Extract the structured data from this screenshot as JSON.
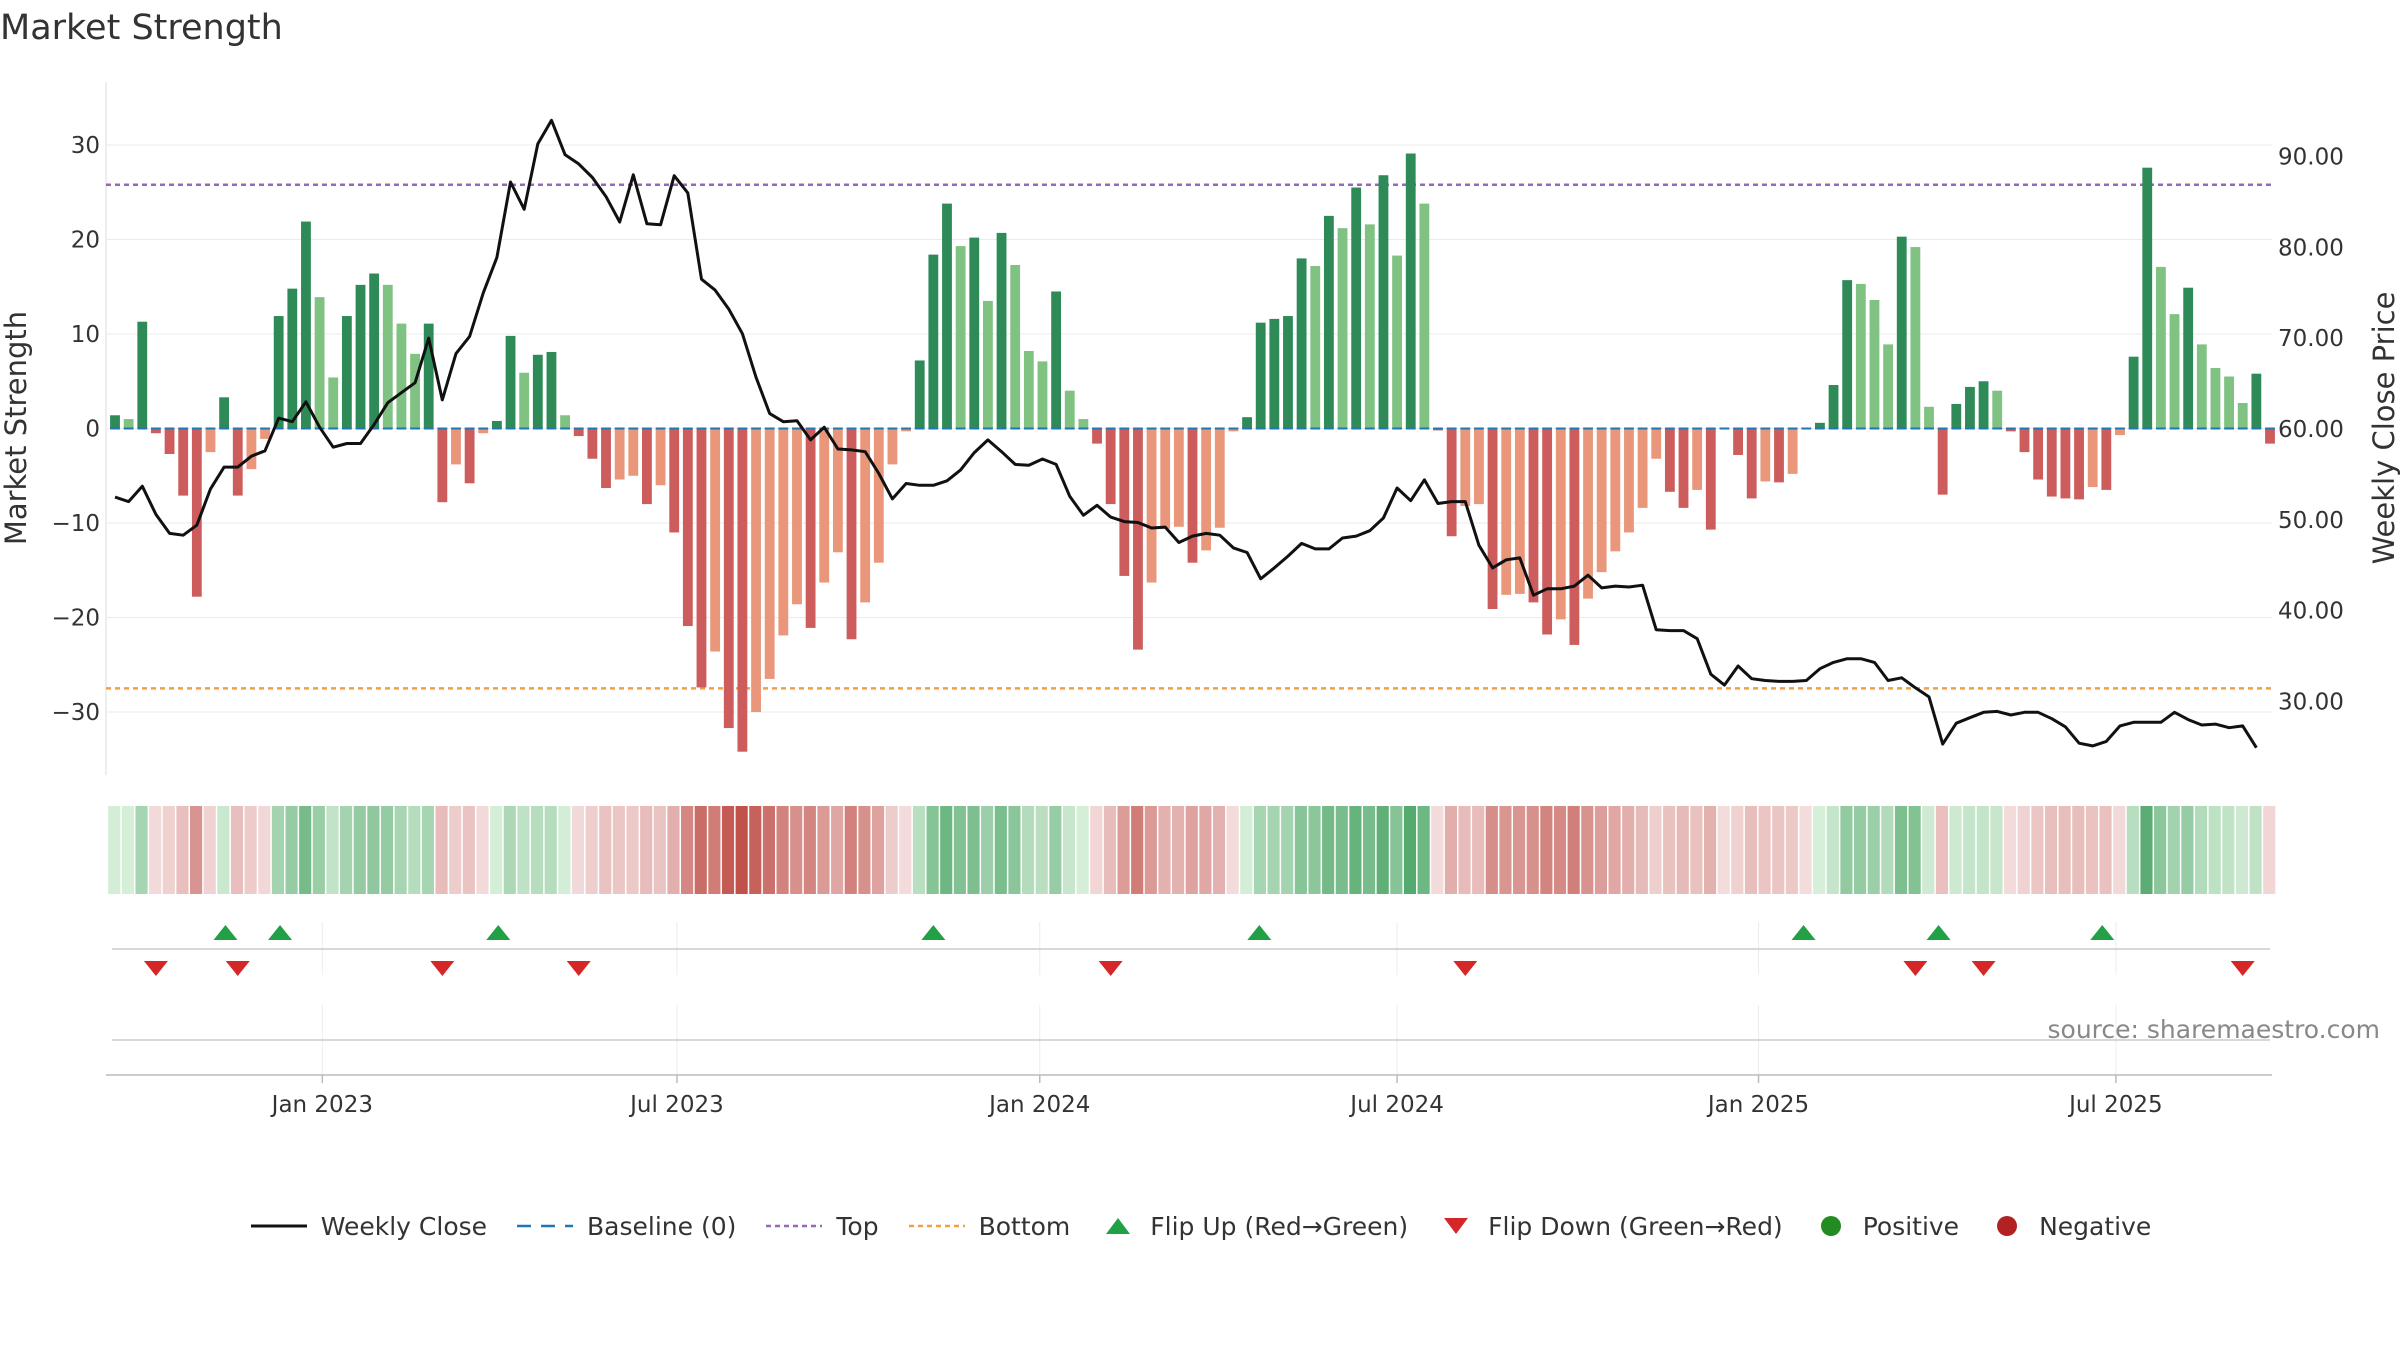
{
  "title": "Market Strength",
  "source": "source: sharemaestro.com",
  "colors": {
    "weekly_close": "#111111",
    "baseline": "#1f77b4",
    "top": "#9467bd",
    "bottom": "#f0a040",
    "pos_dark": "#2e8b57",
    "pos_light": "#7fc282",
    "neg_dark": "#cd5c5c",
    "neg_light": "#e9967a",
    "flip_up": "#22a045",
    "flip_down": "#d62728",
    "positive_dot": "#228b22",
    "negative_dot": "#b22222"
  },
  "legend": [
    {
      "label": "Weekly Close",
      "icon": "line-icon",
      "key": "weekly_close"
    },
    {
      "label": "Baseline (0)",
      "icon": "dashed-line-icon",
      "key": "baseline"
    },
    {
      "label": "Top",
      "icon": "dotted-line-icon",
      "key": "top"
    },
    {
      "label": "Bottom",
      "icon": "dotted-line-icon",
      "key": "bottom"
    },
    {
      "label": "Flip Up (Red→Green)",
      "icon": "triangle-up-icon",
      "key": "flip_up"
    },
    {
      "label": "Flip Down (Green→Red)",
      "icon": "triangle-down-icon",
      "key": "flip_down"
    },
    {
      "label": "Positive",
      "icon": "circle-icon",
      "key": "positive_dot"
    },
    {
      "label": "Negative",
      "icon": "circle-icon",
      "key": "negative_dot"
    }
  ],
  "chart_data": {
    "type": "bar",
    "ylabel": "Market Strength",
    "y2label": "Weekly Close Price",
    "ylim": [
      -37,
      37
    ],
    "y2lim": [
      23,
      98
    ],
    "yticks": [
      30,
      20,
      10,
      0,
      -10,
      -20,
      -30
    ],
    "yticklabels": [
      "30",
      "20",
      "10",
      "0",
      "−10",
      "−20",
      "−30"
    ],
    "y2ticks": [
      90,
      80,
      70,
      60,
      50,
      40,
      30
    ],
    "y2ticklabels": [
      "90.00",
      "80.00",
      "70.00",
      "60.00",
      "50.00",
      "40.00",
      "30.00"
    ],
    "top_threshold": 25.8,
    "bottom_threshold": -27.5,
    "xticks": [
      "Jan 2023",
      "Jul 2023",
      "Jan 2024",
      "Jul 2024",
      "Jan 2025",
      "Jul 2025"
    ],
    "xtick_week_index": [
      15.2,
      41.2,
      67.8,
      94.0,
      120.5,
      146.7
    ],
    "strength": [
      1.4,
      1,
      11.3,
      -0.5,
      -2.7,
      -7.1,
      -17.8,
      -2.5,
      3.3,
      -7.1,
      -4.3,
      -1.1,
      11.9,
      14.8,
      21.9,
      13.9,
      5.4,
      11.9,
      15.2,
      16.4,
      15.2,
      11.1,
      7.9,
      11.1,
      -7.8,
      -3.8,
      -5.8,
      -0.5,
      0.8,
      9.8,
      5.9,
      7.8,
      8.1,
      1.4,
      -0.8,
      -3.2,
      -6.3,
      -5.4,
      -5.0,
      -8.0,
      -6.0,
      -11.0,
      -20.9,
      -27.4,
      -23.6,
      -31.7,
      -34.2,
      -30.0,
      -26.5,
      -21.9,
      -18.6,
      -21.1,
      -16.3,
      -13.1,
      -22.3,
      -18.4,
      -14.2,
      -3.8,
      -0.3,
      7.2,
      18.4,
      23.8,
      19.3,
      20.2,
      13.5,
      20.7,
      17.3,
      8.2,
      7.1,
      14.5,
      4.0,
      1.0,
      -1.6,
      -8.0,
      -15.6,
      -23.4,
      -16.3,
      -10.6,
      -10.4,
      -14.2,
      -12.9,
      -10.5,
      -0.3,
      1.2,
      11.2,
      11.6,
      11.9,
      18.0,
      17.2,
      22.5,
      21.2,
      25.5,
      21.6,
      26.8,
      18.3,
      29.1,
      23.8,
      -0.2,
      -11.4,
      -8.2,
      -8.0,
      -19.1,
      -17.6,
      -17.5,
      -18.4,
      -21.8,
      -20.2,
      -22.9,
      -18.0,
      -15.2,
      -13.0,
      -11.0,
      -8.4,
      -3.2,
      -6.7,
      -8.4,
      -6.5,
      -10.7,
      -0.1,
      -2.8,
      -7.4,
      -5.6,
      -5.7,
      -4.8,
      -0.1,
      0.6,
      4.6,
      15.7,
      15.3,
      13.6,
      8.9,
      20.3,
      19.2,
      2.3,
      -7.0,
      2.6,
      4.4,
      5.0,
      4.0,
      -0.3,
      -2.5,
      -5.4,
      -7.2,
      -7.4,
      -7.5,
      -6.2,
      -6.5,
      -0.7,
      7.6,
      27.6,
      17.1,
      12.1,
      14.9,
      8.9,
      6.4,
      5.5,
      2.7,
      5.8,
      -1.6
    ],
    "weekly_close": [
      52.5,
      52,
      53.7,
      50.6,
      48.5,
      48.3,
      49.4,
      53.4,
      55.8,
      55.8,
      57,
      57.6,
      61.2,
      60.8,
      63,
      60.2,
      58,
      58.4,
      58.4,
      60.5,
      62.9,
      64,
      65.1,
      70,
      63.2,
      68.3,
      70.2,
      75,
      78.9,
      87.2,
      84.2,
      91.4,
      94,
      90.2,
      89.2,
      87.7,
      85.6,
      82.8,
      88,
      82.6,
      82.5,
      87.9,
      86,
      76.5,
      75.3,
      73.2,
      70.5,
      65.7,
      61.7,
      60.8,
      60.9,
      58.8,
      60.2,
      57.8,
      57.7,
      57.5,
      55.1,
      52.3,
      54,
      53.8,
      53.8,
      54.3,
      55.5,
      57.4,
      58.8,
      57.5,
      56.1,
      56,
      56.7,
      56.1,
      52.6,
      50.5,
      51.6,
      50.3,
      49.8,
      49.7,
      49.1,
      49.2,
      47.5,
      48.2,
      48.5,
      48.3,
      46.9,
      46.4,
      43.5,
      44.7,
      46,
      47.4,
      46.8,
      46.8,
      48,
      48.2,
      48.8,
      50.2,
      53.5,
      52.1,
      54.4,
      51.8,
      52,
      52,
      47.2,
      44.7,
      45.6,
      45.8,
      41.7,
      42.4,
      42.4,
      42.7,
      43.9,
      42.5,
      42.7,
      42.6,
      42.8,
      37.9,
      37.8,
      37.8,
      36.9,
      33,
      31.8,
      33.9,
      32.5,
      32.3,
      32.2,
      32.2,
      32.3,
      33.6,
      34.3,
      34.7,
      34.7,
      34.3,
      32.3,
      32.6,
      31.5,
      30.5,
      25.3,
      27.6,
      28.2,
      28.8,
      28.9,
      28.5,
      28.8,
      28.8,
      28.1,
      27.2,
      25.4,
      25.1,
      25.6,
      27.3,
      27.7,
      27.7,
      27.7,
      28.8,
      28,
      27.4,
      27.5,
      27.1,
      27.3,
      24.9
    ],
    "flip_up_weeks": [
      8.1,
      12.1,
      28.1,
      60.0,
      83.9,
      123.8,
      133.7,
      145.7
    ],
    "flip_down_weeks": [
      3.0,
      9.0,
      24.0,
      34.0,
      73.0,
      99.0,
      132.0,
      137.0,
      156.0
    ]
  }
}
